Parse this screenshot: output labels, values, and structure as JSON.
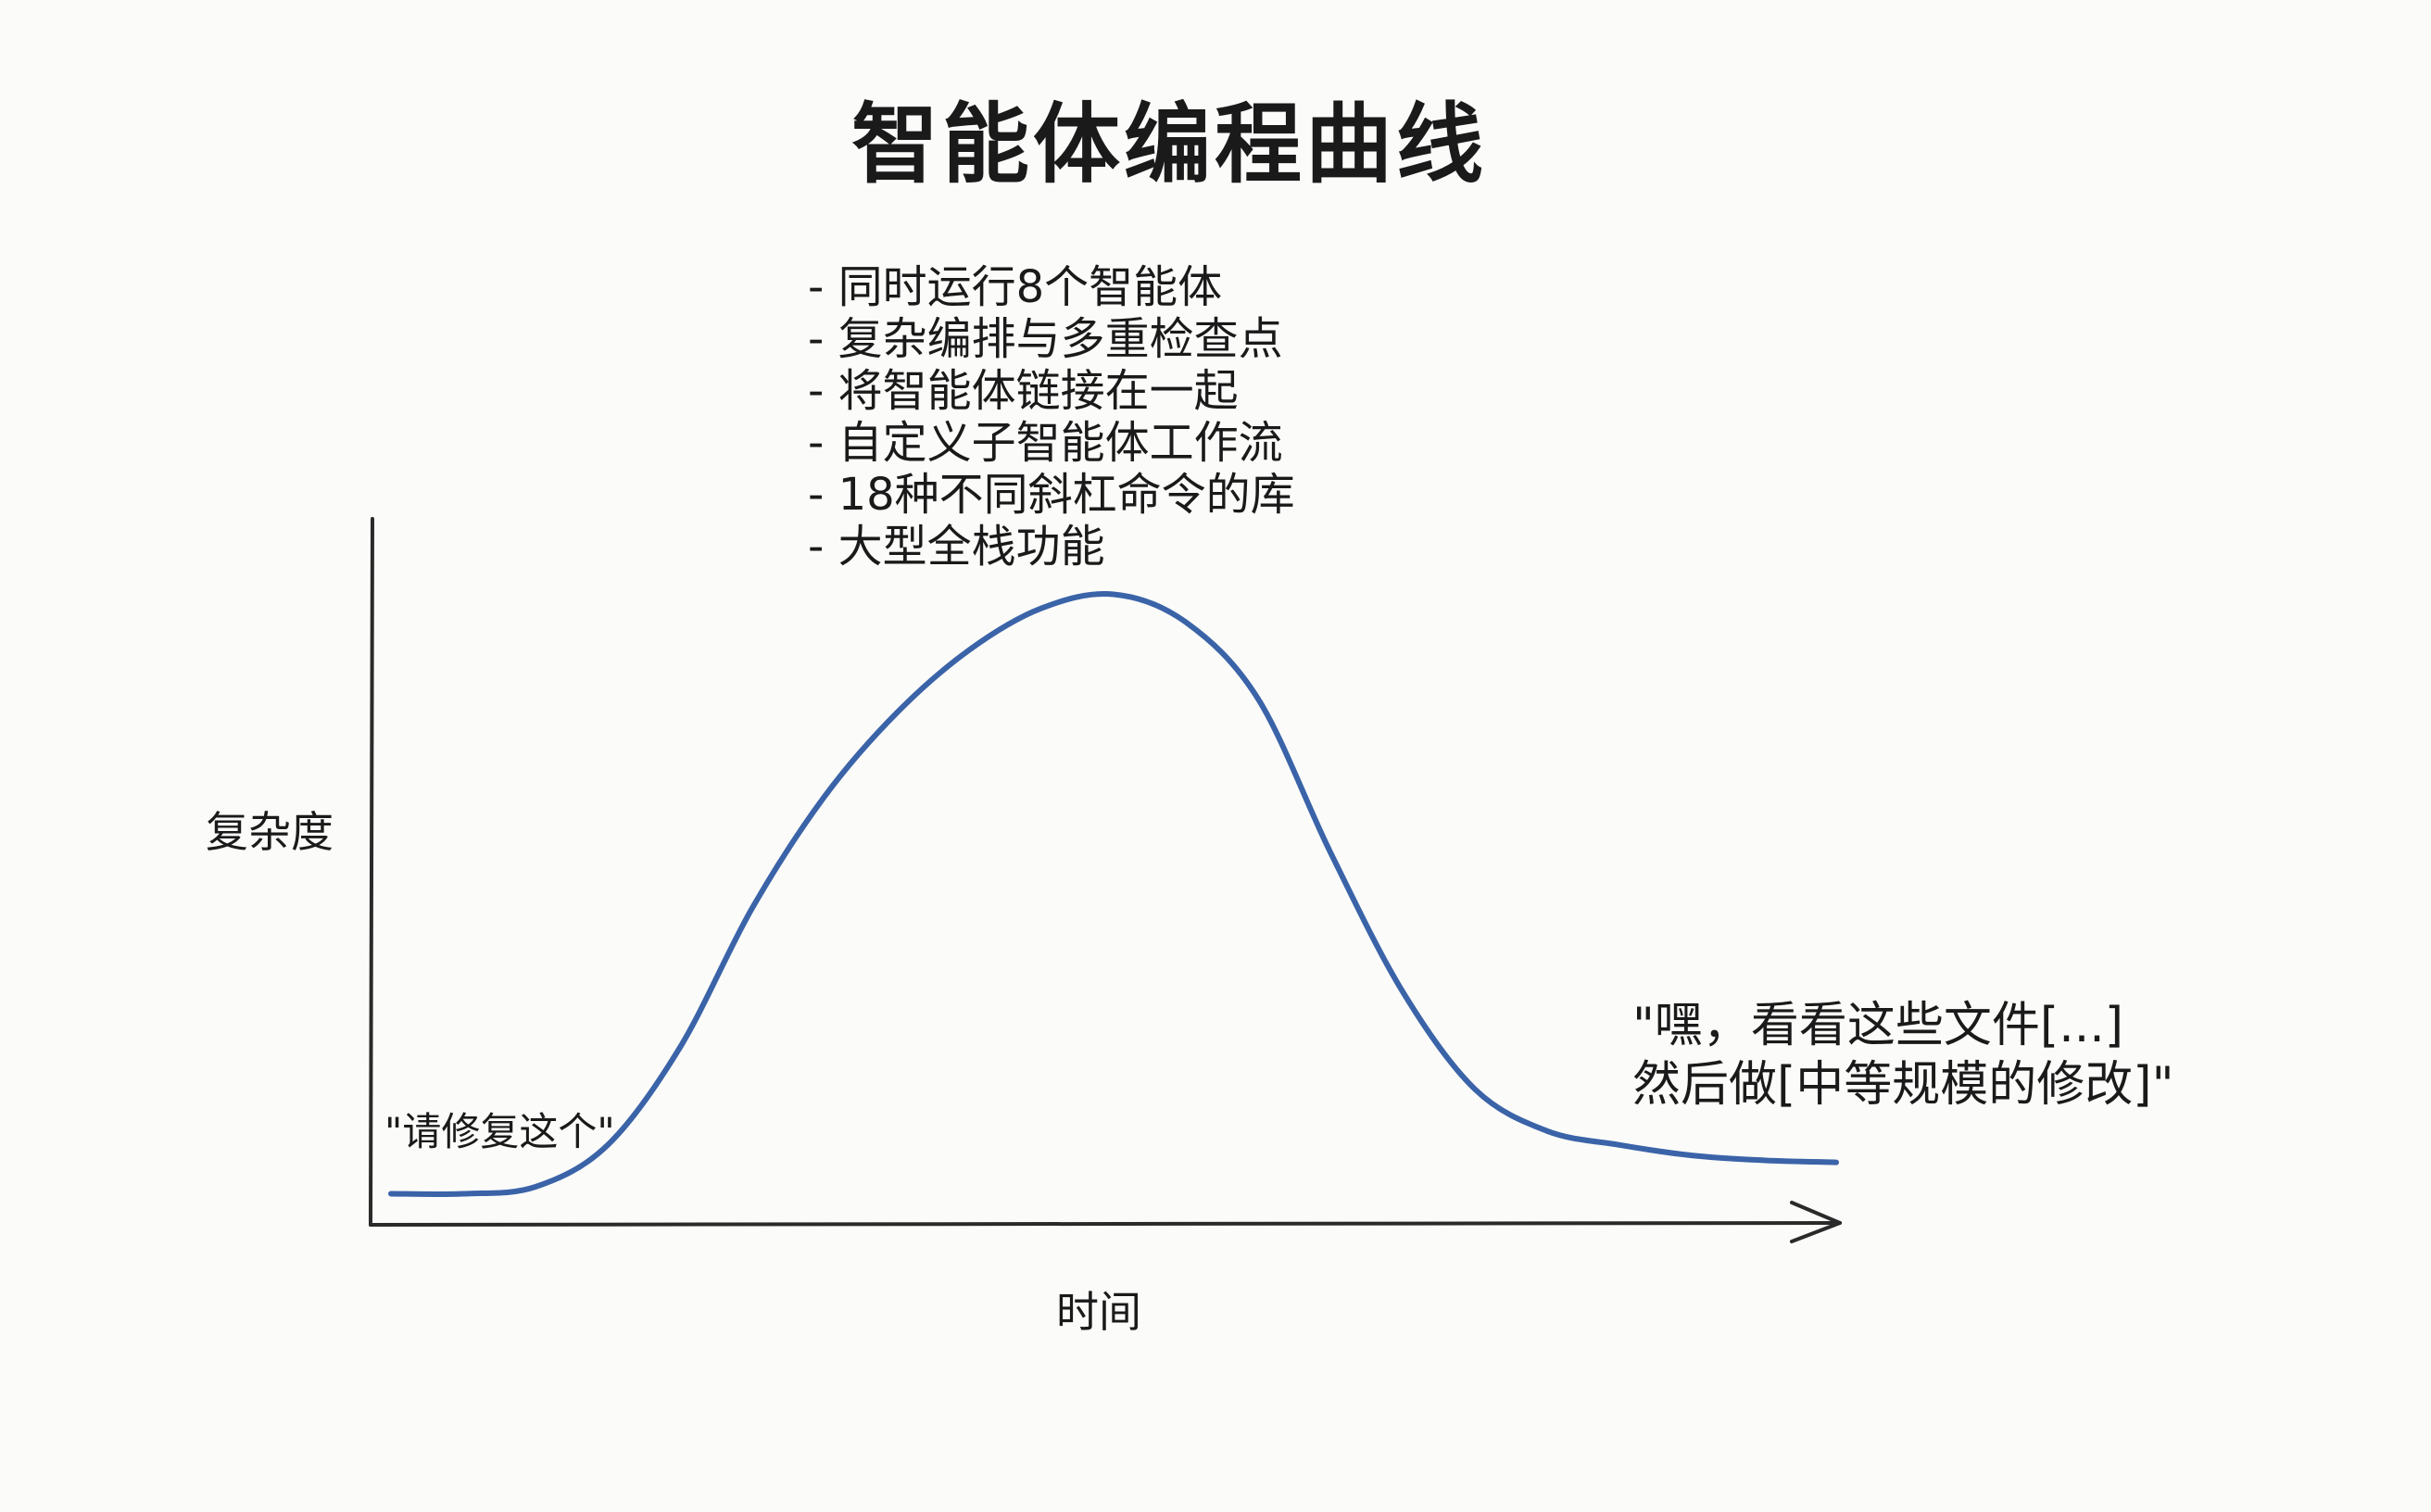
{
  "chart_data": {
    "type": "line",
    "title": "智能体编程曲线",
    "xlabel": "时间",
    "ylabel": "复杂度",
    "grid": false,
    "series": [
      {
        "x": [
          0,
          5,
          10,
          15,
          20,
          25,
          30,
          35,
          40,
          45,
          50,
          55,
          60,
          65,
          70,
          75,
          80,
          85,
          90,
          95,
          100
        ],
        "values": [
          1,
          1,
          2,
          8,
          22,
          42,
          58,
          70,
          79,
          85,
          87,
          83,
          72,
          50,
          30,
          16,
          10,
          8,
          6.5,
          5.8,
          5.5
        ],
        "color": "#3a63a8"
      }
    ],
    "annotations": {
      "start_quote": "\"请修复这个\"",
      "peak_notes": [
        "- 同时运行8个智能体",
        "- 复杂编排与多重检查点",
        "- 将智能体链接在一起",
        "- 自定义子智能体工作流",
        "- 18种不同斜杠命令的库",
        "- 大型全栈功能"
      ],
      "end_quote_lines": [
        "\"嘿，看看这些文件[...]",
        "然后做[中等规模的修改]\""
      ]
    }
  }
}
